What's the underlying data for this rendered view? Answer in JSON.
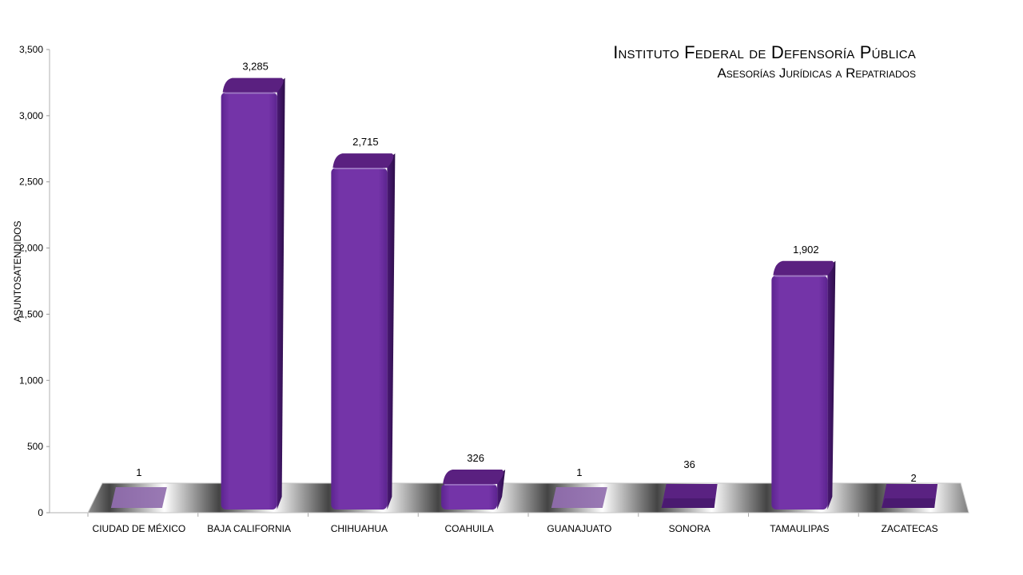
{
  "chart_data": {
    "type": "bar",
    "title": "Instituto Federal de Defensoría Pública",
    "subtitle": "Asesorías Jurídicas a Repatriados",
    "ylabel": "ASUNTOSATENDIDOS",
    "xlabel": "",
    "ylim": [
      0,
      3500
    ],
    "yticks": [
      0,
      500,
      1000,
      1500,
      2000,
      2500,
      3000,
      3500
    ],
    "ytick_labels": [
      "0",
      "500",
      "1,000",
      "1,500",
      "2,000",
      "2,500",
      "3,000",
      "3,500"
    ],
    "categories": [
      "CIUDAD DE MÉXICO",
      "BAJA CALIFORNIA",
      "CHIHUAHUA",
      "COAHUILA",
      "GUANAJUATO",
      "SONORA",
      "TAMAULIPAS",
      "ZACATECAS"
    ],
    "values": [
      1,
      3285,
      2715,
      326,
      1,
      36,
      1902,
      2
    ],
    "data_labels": [
      "1",
      "3,285",
      "2,715",
      "326",
      "1",
      "36",
      "1,902",
      "2"
    ],
    "bar_color": "#7030a0",
    "bar_top_color": "#5a2080",
    "grid": false,
    "legend": "none",
    "style": "3d"
  }
}
